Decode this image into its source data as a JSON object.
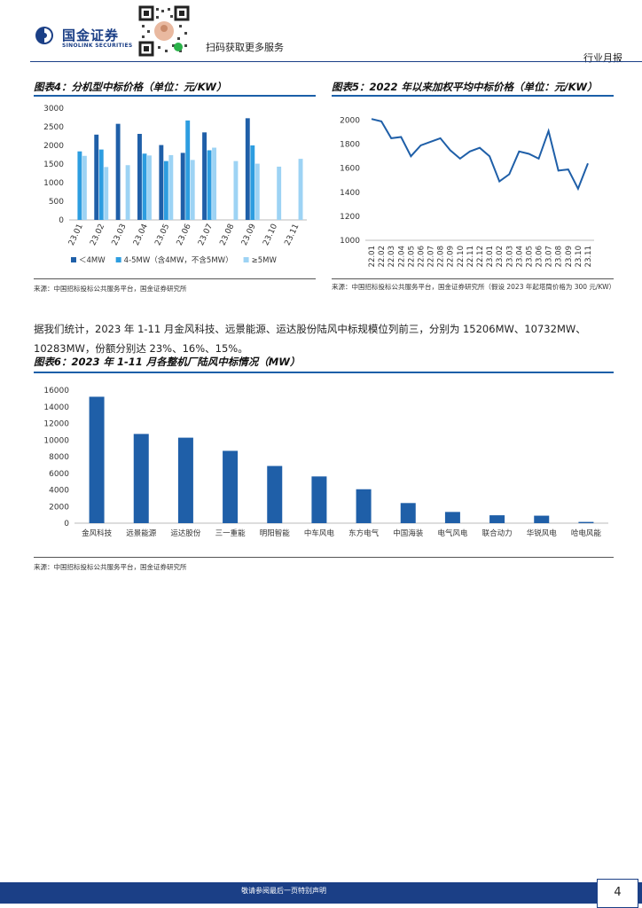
{
  "header": {
    "logo_cn": "国金证券",
    "logo_en": "SINOLINK SECURITIES",
    "qr_text": "扫码获取更多服务",
    "report_type": "行业月报"
  },
  "figure4": {
    "title": "图表4：分机型中标价格（单位：元/KW）",
    "source": "来源：中国招标投标公共服务平台，国金证券研究所"
  },
  "figure5": {
    "title": "图表5：2022 年以来加权平均中标价格（单位：元/KW）",
    "source": "来源：中国招标投标公共服务平台，国金证券研究所（假设 2023 年起塔筒价格为 300 元/KW）"
  },
  "body": {
    "paragraph": "据我们统计，2023 年 1-11 月金风科技、远景能源、运达股份陆风中标规模位列前三，分别为 15206MW、10732MW、10283MW，份额分别达 23%、16%、15%。"
  },
  "figure6": {
    "title": "图表6：2023 年 1-11 月各整机厂陆风中标情况（MW）",
    "source": "来源：中国招标投标公共服务平台，国金证券研究所"
  },
  "footer": {
    "disclaimer": "敬请参阅最后一页特别声明",
    "page_number": "4"
  },
  "chart_data": [
    {
      "id": "fig4",
      "type": "bar",
      "categories": [
        "23.01",
        "23.02",
        "23.03",
        "23.04",
        "23.05",
        "23.06",
        "23.07",
        "23.08",
        "23.09",
        "23.10",
        "23.11"
      ],
      "series": [
        {
          "name": "＜4MW",
          "color": "#1f5fa8",
          "values": [
            null,
            2290,
            2580,
            2310,
            2010,
            1800,
            2350,
            null,
            2730,
            null,
            null
          ]
        },
        {
          "name": "4-5MW（含4MW，不含5MW）",
          "color": "#2d9de0",
          "values": [
            1840,
            1890,
            null,
            1780,
            1580,
            2670,
            1870,
            null,
            2000,
            null,
            null
          ]
        },
        {
          "name": "≥5MW",
          "color": "#9dd3f4",
          "values": [
            1720,
            1420,
            1470,
            1730,
            1740,
            1610,
            1940,
            1580,
            1510,
            1430,
            1640
          ]
        }
      ],
      "ylim": [
        0,
        3000
      ],
      "yticks": [
        0,
        500,
        1000,
        1500,
        2000,
        2500,
        3000
      ],
      "legend": [
        "＜4MW",
        "4-5MW（含4MW，不含5MW）",
        "≥5MW"
      ]
    },
    {
      "id": "fig5",
      "type": "line",
      "x": [
        "22.01",
        "22.02",
        "22.03",
        "22.04",
        "22.05",
        "22.06",
        "22.07",
        "22.08",
        "22.09",
        "22.10",
        "22.11",
        "22.12",
        "23.01",
        "23.02",
        "23.03",
        "23.04",
        "23.05",
        "23.06",
        "23.07",
        "23.08",
        "23.09",
        "23.10",
        "23.11"
      ],
      "series": [
        {
          "name": "加权平均中标价格",
          "color": "#1f5fa8",
          "values": [
            2010,
            1990,
            1850,
            1860,
            1700,
            1790,
            1820,
            1850,
            1750,
            1680,
            1740,
            1770,
            1700,
            1490,
            1550,
            1740,
            1720,
            1680,
            1910,
            1580,
            1590,
            1430,
            1640
          ]
        }
      ],
      "ylim": [
        1000,
        2100
      ],
      "yticks": [
        1000,
        1200,
        1400,
        1600,
        1800,
        2000
      ]
    },
    {
      "id": "fig6",
      "type": "bar",
      "categories": [
        "金风科技",
        "远景能源",
        "运达股份",
        "三一重能",
        "明阳智能",
        "中车风电",
        "东方电气",
        "中国海装",
        "电气风电",
        "联合动力",
        "华锐风电",
        "哈电风能"
      ],
      "series": [
        {
          "name": "中标规模（MW）",
          "color": "#1f5fa8",
          "values": [
            15206,
            10732,
            10283,
            8700,
            6880,
            5620,
            4080,
            2420,
            1350,
            950,
            900,
            150
          ]
        }
      ],
      "ylim": [
        0,
        16000
      ],
      "yticks": [
        0,
        2000,
        4000,
        6000,
        8000,
        10000,
        12000,
        14000,
        16000
      ]
    }
  ]
}
